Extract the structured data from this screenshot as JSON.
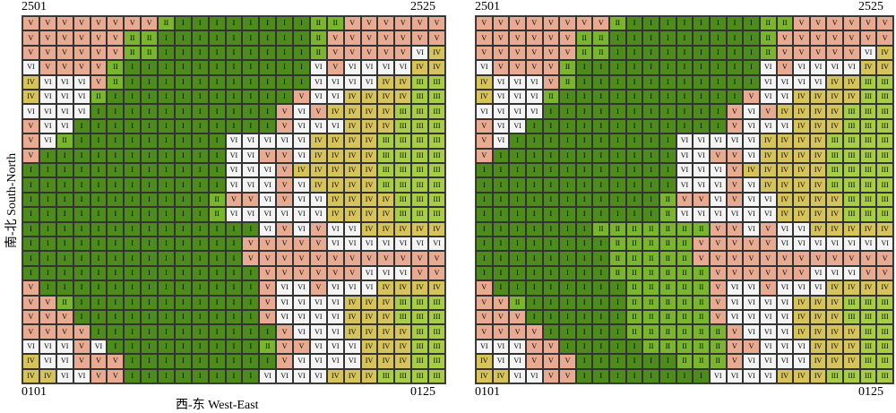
{
  "class_colors": {
    "I": "#4d8b1a",
    "II": "#79b62b",
    "III": "#a7cd45",
    "IV": "#d6c35a",
    "V": "#e8ab92",
    "VI": "#f4f4f4"
  },
  "panels": [
    {
      "top_left": "2501",
      "top_right": "2525",
      "bottom_left": "0101",
      "bottom_right": "0125",
      "x_axis_label": "西-东 West-East",
      "y_axis_label": "南-北 South-North",
      "rows": [
        "V V V V V V V V II I I I I I I I I II II V V V V V V",
        "V V V V V V II II I I I I I I I I I II V V V V V V V",
        "V V V V V V II II I I I I I I I I I II V V V V V VI IV",
        "VI V V V V II I I I I I I I I I I I VI V VI VI VI VI IV",
        "IV VI VI VI V II I I I I I I I I I I I VI VI VI VI IV IV III",
        "IV VI VI VI II I I I I I I I I I I I V VI VI IV IV IV IV III",
        "VI VI VI VI I I I I I I I I I I I V VI V IV IV IV IV III III",
        "V VI VI I I I I I I I I I I I I V VI VI VI IV IV IV III III",
        "V VI II I I I I I I I I I VI VI VI VI VI IV IV IV IV III III",
        "V I I I I I I I I I I I VI VI V V VI IV IV IV IV III III",
        "I I I I I I I I I I I I VI VI VI V IV IV IV IV IV III III",
        "I I I I I I I I I I I I VI VI VI V VI IV IV IV IV III III",
        "I I I I I I I I I I I II V V VI V VI VI IV IV IV IV III III",
        "I I I I I I I I I I I II VI VI VI VI VI VI IV IV IV IV III III",
        "I I I I I I I I I I I I I I VI V VI V VI VI IV IV IV IV",
        "I I I I I I I I I I I I I V V V V V VI VI VI VI VI VI",
        "I I I I I I I I I I I I I V V V V V V V V V V V",
        "I I I I I I I I I I I I I I V V V V V V VI VI VI V",
        "V I I I I I I I I I I I I I V VI VI V VI VI VI IV IV",
        "V V II I I I I I I I I I I I V VI VI VI VI IV IV IV III",
        "V V V I I I I I I I I I I I V VI VI VI VI IV IV IV III",
        "V V V V I I I I I I I I I I I V VI VI VI IV IV IV IV III",
        "VI VI VI V VI I I I I I I I I I II V V VI VI VI IV IV IV III",
        "IV VI VI V V V I I I I I I I I I V VI VI VI VI IV IV IV III",
        "IV IV VI VI V V I I I I I I I I VI VI VI VI IV IV IV III III"
      ]
    },
    {
      "top_left": "2501",
      "top_right": "2525",
      "bottom_left": "0101",
      "bottom_right": "0125",
      "x_axis_label": "",
      "y_axis_label": "",
      "rows": [
        "V V V V V V V V II I I I I I I I I II II V V V V V V",
        "V V V V V V II II I I I I I I I I I II V V V V V V V",
        "V V V V V V II II I I I I I I I I I II V V V V V VI IV",
        "VI V V V V II I I I I I I I I I I I VI V VI VI VI VI IV",
        "IV VI VI VI V II I I I I I I I I I I I VI VI VI VI IV IV III",
        "IV VI VI VI II I I I I I I I I I I I V VI VI IV IV IV IV III",
        "VI VI VI VI I I I I I I I I I I I V VI V IV IV IV IV III III",
        "V VI VI I I I I I I I I I I I I V VI VI VI IV IV IV III III",
        "V VI I I I I I I I I I I VI VI VI VI VI IV IV IV IV III III",
        "V I I I I I I I I I I I VI VI V V VI IV IV IV IV III III",
        "I I I I I I I I I I I I VI VI VI V IV IV IV IV IV III III",
        "I I I I I I I I I I I I VI VI VI V VI IV IV IV IV III III",
        "I I I I I I I I I I I II V V VI V VI VI IV IV IV IV III III",
        "I I I I I I I I I I I II VI VI VI VI VI VI IV IV IV IV III III",
        "I I I I I I I II II II II II II II V V VI V VI VI IV IV IV IV",
        "I I I I I I I I II II II II II V V V V V VI VI VI VI VI VI",
        "I I I I I I I I II II II II II V V V V V V V V V V V",
        "I I I I I I I I II II II II II II V V V V V V VI VI VI V",
        "V I I I I I I I I II II II II II V VI VI V VI VI VI IV IV",
        "V V II I I I I I I II II II II II V VI VI VI VI IV IV IV III",
        "V V V I I I I I I II II II II II V VI VI VI VI IV IV IV III",
        "V V V V I I I I I II II II II II II V VI VI VI IV IV IV IV III",
        "VI VI VI V V I I I I I II II II II II V V VI VI VI IV IV IV III",
        "IV VI VI V V V I I I I I I II II II V VI VI VI VI IV IV IV III",
        "IV IV VI VI V V I I I I I I I I VI VI VI VI IV IV IV III III"
      ]
    }
  ]
}
